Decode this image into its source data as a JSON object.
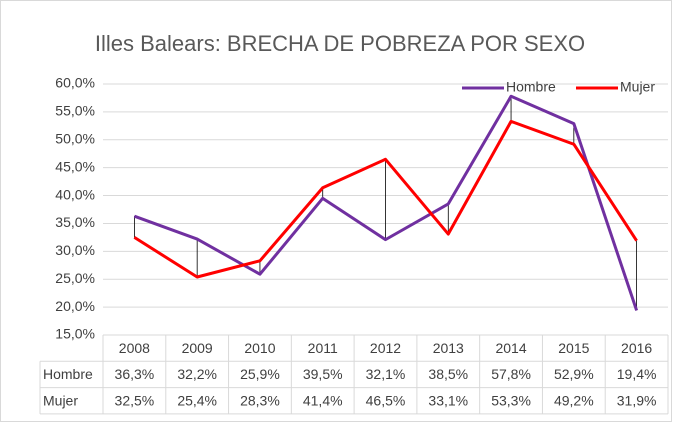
{
  "chart_data": {
    "type": "line",
    "title": "Illes Balears: BRECHA DE POBREZA POR SEXO",
    "categories": [
      "2008",
      "2009",
      "2010",
      "2011",
      "2012",
      "2013",
      "2014",
      "2015",
      "2016"
    ],
    "series": [
      {
        "name": "Hombre",
        "color": "#7030a0",
        "values": [
          36.3,
          32.2,
          25.9,
          39.5,
          32.1,
          38.5,
          57.8,
          52.9,
          19.4
        ],
        "value_labels": [
          "36,3%",
          "32,2%",
          "25,9%",
          "39,5%",
          "32,1%",
          "38,5%",
          "57,8%",
          "52,9%",
          "19,4%"
        ]
      },
      {
        "name": "Mujer",
        "color": "#ff0000",
        "values": [
          32.5,
          25.4,
          28.3,
          41.4,
          46.5,
          33.1,
          53.3,
          49.2,
          31.9
        ],
        "value_labels": [
          "32,5%",
          "25,4%",
          "28,3%",
          "41,4%",
          "46,5%",
          "33,1%",
          "53,3%",
          "49,2%",
          "31,9%"
        ]
      }
    ],
    "ylim": [
      15,
      60
    ],
    "yticks": [
      {
        "value": 15,
        "label": "15,0%"
      },
      {
        "value": 20,
        "label": "20,0%"
      },
      {
        "value": 25,
        "label": "25,0%"
      },
      {
        "value": 30,
        "label": "30,0%"
      },
      {
        "value": 35,
        "label": "35,0%"
      },
      {
        "value": 40,
        "label": "40,0%"
      },
      {
        "value": 45,
        "label": "45,0%"
      },
      {
        "value": 50,
        "label": "50,0%"
      },
      {
        "value": 55,
        "label": "55,0%"
      },
      {
        "value": 60,
        "label": "60,0%"
      }
    ],
    "grid": true,
    "legend": "top-right",
    "high_low_lines": true,
    "data_table": true
  }
}
